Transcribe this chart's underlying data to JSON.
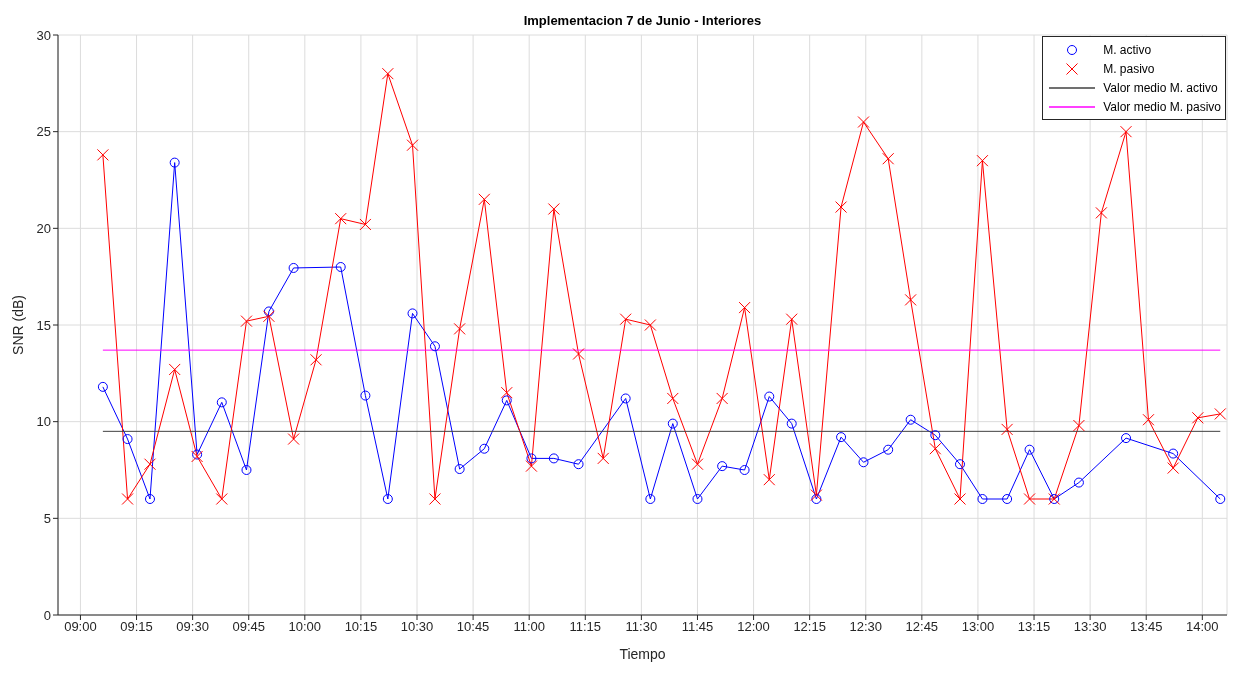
{
  "chart_data": {
    "type": "line",
    "title": "Implementacion 7 de Junio - Interiores",
    "xlabel": "Tiempo",
    "ylabel": "SNR (dB)",
    "xlim": [
      8.9,
      14.11
    ],
    "ylim": [
      0,
      30
    ],
    "yticks": [
      0,
      5,
      10,
      15,
      20,
      25,
      30
    ],
    "xticks": [
      {
        "value": 9,
        "label": "09:00"
      },
      {
        "value": 9.25,
        "label": "09:15"
      },
      {
        "value": 9.5,
        "label": "09:30"
      },
      {
        "value": 9.75,
        "label": "09:45"
      },
      {
        "value": 10,
        "label": "10:00"
      },
      {
        "value": 10.25,
        "label": "10:15"
      },
      {
        "value": 10.5,
        "label": "10:30"
      },
      {
        "value": 10.75,
        "label": "10:45"
      },
      {
        "value": 11,
        "label": "11:00"
      },
      {
        "value": 11.25,
        "label": "11:15"
      },
      {
        "value": 11.5,
        "label": "11:30"
      },
      {
        "value": 11.75,
        "label": "11:45"
      },
      {
        "value": 12,
        "label": "12:00"
      },
      {
        "value": 12.25,
        "label": "12:15"
      },
      {
        "value": 12.5,
        "label": "12:30"
      },
      {
        "value": 12.75,
        "label": "12:45"
      },
      {
        "value": 13,
        "label": "13:00"
      },
      {
        "value": 13.25,
        "label": "13:15"
      },
      {
        "value": 13.5,
        "label": "13:30"
      },
      {
        "value": 13.75,
        "label": "13:45"
      },
      {
        "value": 14,
        "label": "14:00"
      }
    ],
    "grid": true,
    "legend": "top right",
    "series": [
      {
        "name": "M. activo",
        "color": "#0000ff",
        "marker": "circle",
        "x": [
          9.1,
          9.21,
          9.31,
          9.42,
          9.52,
          9.63,
          9.74,
          9.84,
          9.95,
          10.16,
          10.27,
          10.37,
          10.48,
          10.58,
          10.69,
          10.8,
          10.9,
          11.01,
          11.11,
          11.22,
          11.43,
          11.54,
          11.64,
          11.75,
          11.86,
          11.96,
          12.07,
          12.17,
          12.28,
          12.39,
          12.49,
          12.6,
          12.7,
          12.81,
          12.92,
          13.02,
          13.13,
          13.23,
          13.34,
          13.45,
          13.66,
          13.87,
          14.08
        ],
        "values": [
          11.8,
          9.1,
          6.0,
          23.4,
          8.3,
          11.0,
          7.5,
          15.7,
          17.95,
          18.0,
          11.35,
          6.0,
          15.6,
          13.9,
          7.55,
          8.6,
          11.1,
          8.1,
          8.1,
          7.8,
          11.2,
          6.0,
          9.9,
          6.0,
          7.7,
          7.5,
          11.3,
          9.9,
          6.0,
          9.2,
          7.9,
          8.55,
          10.1,
          9.3,
          7.8,
          6.0,
          6.0,
          8.55,
          6.0,
          6.85,
          9.15,
          8.35,
          6.0
        ]
      },
      {
        "name": "M. pasivo",
        "color": "#ff0000",
        "marker": "cross",
        "x": [
          9.1,
          9.21,
          9.31,
          9.42,
          9.52,
          9.63,
          9.74,
          9.84,
          9.95,
          10.05,
          10.16,
          10.27,
          10.37,
          10.48,
          10.58,
          10.69,
          10.8,
          10.9,
          11.01,
          11.11,
          11.22,
          11.33,
          11.43,
          11.54,
          11.64,
          11.75,
          11.86,
          11.96,
          12.07,
          12.17,
          12.28,
          12.39,
          12.49,
          12.6,
          12.7,
          12.81,
          12.92,
          13.02,
          13.13,
          13.23,
          13.34,
          13.45,
          13.55,
          13.66,
          13.76,
          13.87,
          13.98,
          14.08
        ],
        "values": [
          23.8,
          6.0,
          7.8,
          12.7,
          8.2,
          6.0,
          15.2,
          15.45,
          9.1,
          13.2,
          20.5,
          20.2,
          28.0,
          24.3,
          6.0,
          14.8,
          21.5,
          11.5,
          7.7,
          21.0,
          13.5,
          8.1,
          15.3,
          15.0,
          11.2,
          7.8,
          11.2,
          15.9,
          7.0,
          15.3,
          6.2,
          21.1,
          25.5,
          23.6,
          16.3,
          8.6,
          6.0,
          23.5,
          9.6,
          6.0,
          6.0,
          9.8,
          20.8,
          25.0,
          10.1,
          7.6,
          10.2,
          10.4
        ]
      },
      {
        "name": "Valor medio M. activo",
        "color": "#404040",
        "marker": "none",
        "x": [
          9.1,
          14.08
        ],
        "values": [
          9.5,
          9.5
        ]
      },
      {
        "name": "Valor medio M. pasivo",
        "color": "#ff00ff",
        "marker": "none",
        "x": [
          9.1,
          14.08
        ],
        "values": [
          13.7,
          13.7
        ]
      }
    ]
  }
}
